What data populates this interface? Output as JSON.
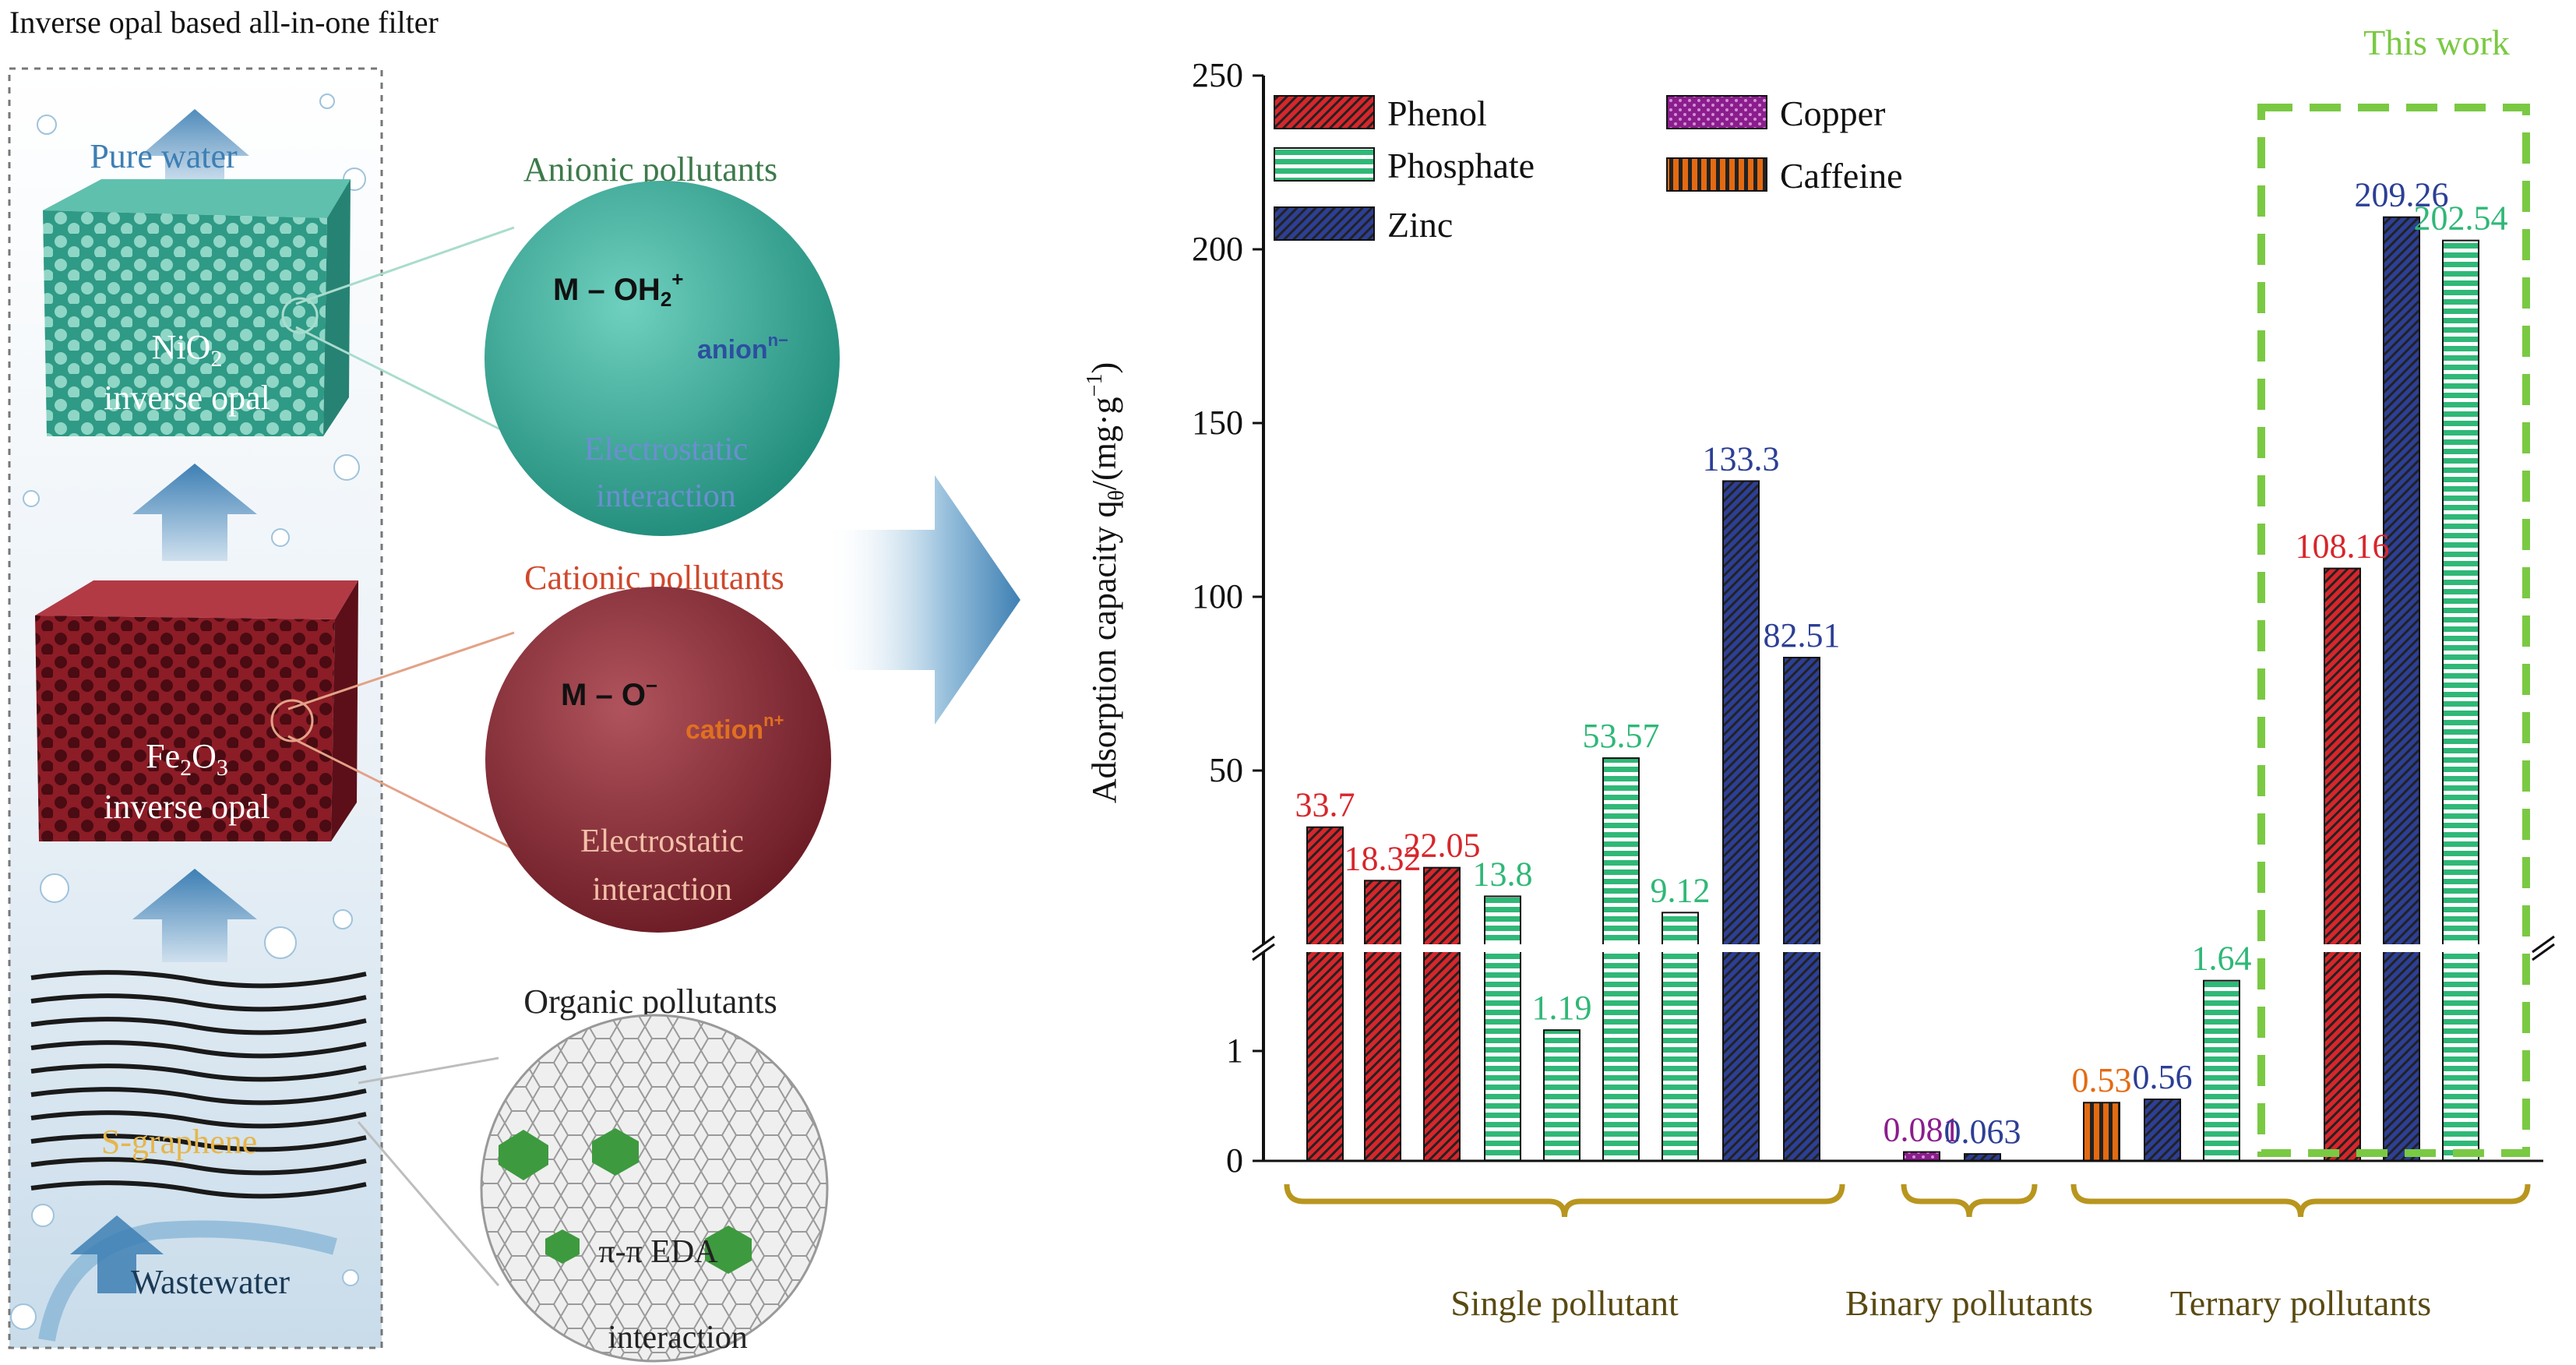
{
  "figure_title": "Inverse opal based all-in-one filter",
  "left_panel": {
    "pure_water": "Pure water",
    "nio2_line1": "NiO",
    "nio2_sub": "2",
    "nio2_line2": "inverse opal",
    "fe2o3_a": "Fe",
    "fe2o3_sub1": "2",
    "fe2o3_b": "O",
    "fe2o3_sub2": "3",
    "fe2o3_line2": "inverse opal",
    "sgraphene": "S-graphene",
    "wastewater": "Wastewater",
    "anionic_title": "Anionic pollutants",
    "anionic_formula_a": "M",
    "anionic_formula_b": "OH",
    "anionic_formula_sub": "2",
    "anionic_formula_sup": "+",
    "anionic_ion": "anion",
    "anionic_ion_sup": "n−",
    "anionic_label1": "Electrostatic",
    "anionic_label2": "interaction",
    "cationic_title": "Cationic pollutants",
    "cationic_formula_a": "M",
    "cationic_formula_b": "O",
    "cationic_formula_sup": "−",
    "cationic_ion": "cation",
    "cationic_ion_sup": "n+",
    "cationic_label1": "Electrostatic",
    "cationic_label2": "interaction",
    "organic_title": "Organic pollutants",
    "organic_label1": "π-π EDA",
    "organic_label2": "interaction",
    "colors": {
      "nio": "#3fa995",
      "fe": "#8c1c26",
      "graphene": "#222222",
      "arrow": "#3d7fb4",
      "anionic_title": "#3d7a4a",
      "cationic_title": "#d0482c",
      "organic_title": "#222222"
    }
  },
  "chart_data": {
    "type": "bar",
    "ylabel": "Adsorption capacity q",
    "ylabel_sub": "θ",
    "ylabel_unit": "/(mg·g",
    "ylabel_sup": "−1",
    "ylabel_end": ")",
    "axis_break": true,
    "lower_ticks": [
      "0",
      "1"
    ],
    "upper_ticks": [
      "50",
      "100",
      "150",
      "200",
      "250"
    ],
    "lower_range": [
      0,
      1.9
    ],
    "upper_range": [
      0,
      250
    ],
    "series": [
      {
        "name": "Phenol",
        "color": "#d7262b",
        "pattern": "diagonal"
      },
      {
        "name": "Phosphate",
        "color": "#2fb877",
        "pattern": "horizontal"
      },
      {
        "name": "Zinc",
        "color": "#2c3f95",
        "pattern": "diagonal"
      },
      {
        "name": "Copper",
        "color": "#8b1d8d",
        "pattern": "dots"
      },
      {
        "name": "Caffeine",
        "color": "#e46a12",
        "pattern": "vertical"
      }
    ],
    "bars": [
      {
        "series": "Phenol",
        "value": 33.7,
        "label": "33.7"
      },
      {
        "series": "Phenol",
        "value": 18.32,
        "label": "18.32"
      },
      {
        "series": "Phenol",
        "value": 22.05,
        "label": "22.05"
      },
      {
        "series": "Phosphate",
        "value": 13.8,
        "label": "13.8"
      },
      {
        "series": "Phosphate",
        "value": 1.19,
        "label": "1.19"
      },
      {
        "series": "Phosphate",
        "value": 53.57,
        "label": "53.57"
      },
      {
        "series": "Phosphate",
        "value": 9.12,
        "label": "9.12"
      },
      {
        "series": "Zinc",
        "value": 133.3,
        "label": "133.3"
      },
      {
        "series": "Zinc",
        "value": 82.51,
        "label": "82.51"
      },
      {
        "series": "Copper",
        "value": 0.081,
        "label": "0.081"
      },
      {
        "series": "Zinc",
        "value": 0.063,
        "label": "0.063"
      },
      {
        "series": "Caffeine",
        "value": 0.53,
        "label": "0.53"
      },
      {
        "series": "Zinc",
        "value": 0.56,
        "label": "0.56"
      },
      {
        "series": "Phosphate",
        "value": 1.64,
        "label": "1.64"
      },
      {
        "series": "Phenol",
        "value": 108.16,
        "label": "108.16"
      },
      {
        "series": "Zinc",
        "value": 209.26,
        "label": "209.26"
      },
      {
        "series": "Phosphate",
        "value": 202.54,
        "label": "202.54"
      }
    ],
    "groups": [
      {
        "label": "Single pollutant"
      },
      {
        "label": "Binary pollutants"
      },
      {
        "label": "Ternary pollutants"
      }
    ],
    "highlight_label": "This work",
    "highlight_color": "#7ac943",
    "bracket_color": "#b8961e"
  }
}
